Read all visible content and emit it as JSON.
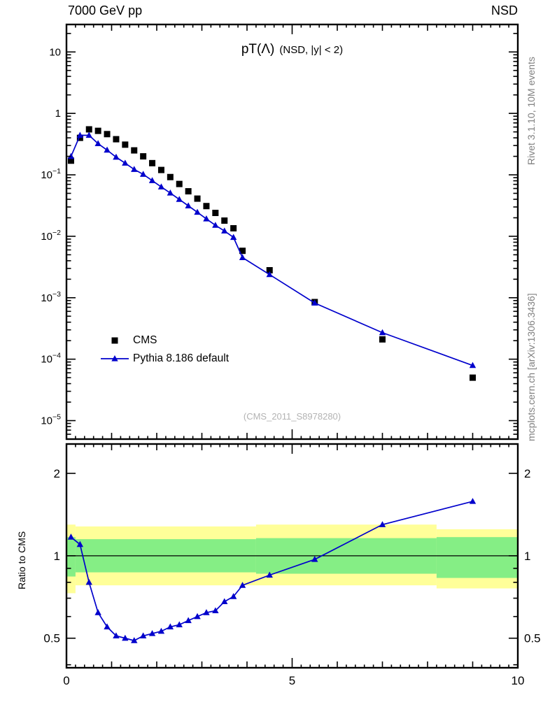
{
  "header": {
    "left_label": "7000 GeV pp",
    "right_label": "NSD"
  },
  "plot_title": {
    "main": "pT(Λ)",
    "sub": "(NSD, |y| < 2)"
  },
  "watermark": "(CMS_2011_S8978280)",
  "side_notes": {
    "top_right": "Rivet 3.1.10, 10M events",
    "bottom_right": "mcplots.cern.ch [arXiv:1306.3436]"
  },
  "ratio_panel": {
    "ylabel": "Ratio to CMS"
  },
  "legend": {
    "items": [
      {
        "label": "CMS",
        "marker": "filled-square",
        "color": "#000000"
      },
      {
        "label": "Pythia 8.186 default",
        "marker": "triangle-line",
        "color": "#0000cc"
      }
    ]
  },
  "colors": {
    "pythia_blue": "#0000cc",
    "cms_black": "#000000",
    "band_yellow": "#ffff99",
    "band_green": "#85ee85",
    "frame": "#000000",
    "note_gray": "#808080",
    "watermark_gray": "#b3b3b3"
  },
  "chart_data": [
    {
      "type": "scatter",
      "panel": "spectrum",
      "title": "pT(Λ) (NSD, |y| < 2)",
      "xlabel": "",
      "ylabel": "",
      "xlim": [
        0,
        10
      ],
      "yscale": "log",
      "ylim": [
        5e-06,
        28
      ],
      "grid": false,
      "legend_position": "left-middle",
      "x": [
        0.1,
        0.3,
        0.5,
        0.7,
        0.9,
        1.1,
        1.3,
        1.5,
        1.7,
        1.9,
        2.1,
        2.3,
        2.5,
        2.7,
        2.9,
        3.1,
        3.3,
        3.5,
        3.7,
        3.9,
        4.5,
        5.5,
        7,
        9
      ],
      "series": [
        {
          "name": "CMS",
          "marker": "square",
          "line": false,
          "color": "#000000",
          "values": [
            0.17,
            0.4,
            0.55,
            0.52,
            0.46,
            0.38,
            0.31,
            0.25,
            0.2,
            0.155,
            0.12,
            0.092,
            0.071,
            0.054,
            0.041,
            0.031,
            0.024,
            0.018,
            0.0135,
            0.0058,
            0.0028,
            0.00085,
            0.00021,
            5e-05
          ]
        },
        {
          "name": "Pythia 8.186 default",
          "marker": "triangle",
          "line": true,
          "color": "#0000cc",
          "values": [
            0.199,
            0.44,
            0.44,
            0.322,
            0.253,
            0.194,
            0.155,
            0.1225,
            0.102,
            0.0806,
            0.0636,
            0.0506,
            0.0398,
            0.0313,
            0.0246,
            0.0192,
            0.0151,
            0.0122,
            0.0096,
            0.0045,
            0.00238,
            0.00082,
            0.00027,
            7.9e-05
          ]
        }
      ],
      "ytick_labels": [
        {
          "exp": 1,
          "base": "10",
          "sup": ""
        },
        {
          "exp": 0,
          "base": "1",
          "sup": ""
        },
        {
          "exp": -1,
          "base": "10",
          "sup": "−1"
        },
        {
          "exp": -2,
          "base": "10",
          "sup": "−2"
        },
        {
          "exp": -3,
          "base": "10",
          "sup": "−3"
        },
        {
          "exp": -4,
          "base": "10",
          "sup": "−4"
        },
        {
          "exp": -5,
          "base": "10",
          "sup": "−5"
        }
      ]
    },
    {
      "type": "line",
      "panel": "ratio",
      "title": "",
      "xlabel": "",
      "ylabel": "Ratio to CMS",
      "xlim": [
        0,
        10
      ],
      "yscale": "log",
      "ylim": [
        0.39,
        2.56
      ],
      "grid": false,
      "x": [
        0.1,
        0.3,
        0.5,
        0.7,
        0.9,
        1.1,
        1.3,
        1.5,
        1.7,
        1.9,
        2.1,
        2.3,
        2.5,
        2.7,
        2.9,
        3.1,
        3.3,
        3.5,
        3.7,
        3.9,
        4.5,
        5.5,
        7,
        9
      ],
      "series": [
        {
          "name": "Pythia 8.186 default / CMS",
          "marker": "triangle",
          "line": true,
          "color": "#0000cc",
          "values": [
            1.17,
            1.1,
            0.8,
            0.62,
            0.55,
            0.51,
            0.5,
            0.49,
            0.51,
            0.52,
            0.53,
            0.55,
            0.56,
            0.58,
            0.6,
            0.62,
            0.63,
            0.68,
            0.71,
            0.78,
            0.85,
            0.97,
            1.3,
            1.58
          ]
        }
      ],
      "reference_line": 1,
      "bands": [
        {
          "x0": 0.0,
          "x1": 0.2,
          "yellow": [
            0.73,
            1.3
          ],
          "green": [
            0.84,
            1.17
          ]
        },
        {
          "x0": 0.2,
          "x1": 4.2,
          "yellow": [
            0.78,
            1.28
          ],
          "green": [
            0.87,
            1.15
          ]
        },
        {
          "x0": 4.2,
          "x1": 8.2,
          "yellow": [
            0.78,
            1.3
          ],
          "green": [
            0.86,
            1.16
          ]
        },
        {
          "x0": 8.2,
          "x1": 10.0,
          "yellow": [
            0.76,
            1.25
          ],
          "green": [
            0.83,
            1.17
          ]
        }
      ],
      "yticks": [
        {
          "v": 2,
          "label": "2"
        },
        {
          "v": 1,
          "label": "1"
        },
        {
          "v": 0.5,
          "label": "0.5"
        }
      ],
      "ytick_minor": [
        0.4,
        0.6,
        0.7,
        0.8,
        0.9
      ],
      "xticks": [
        {
          "v": 0,
          "label": "0"
        },
        {
          "v": 5,
          "label": "5"
        },
        {
          "v": 10,
          "label": "10"
        }
      ]
    }
  ]
}
